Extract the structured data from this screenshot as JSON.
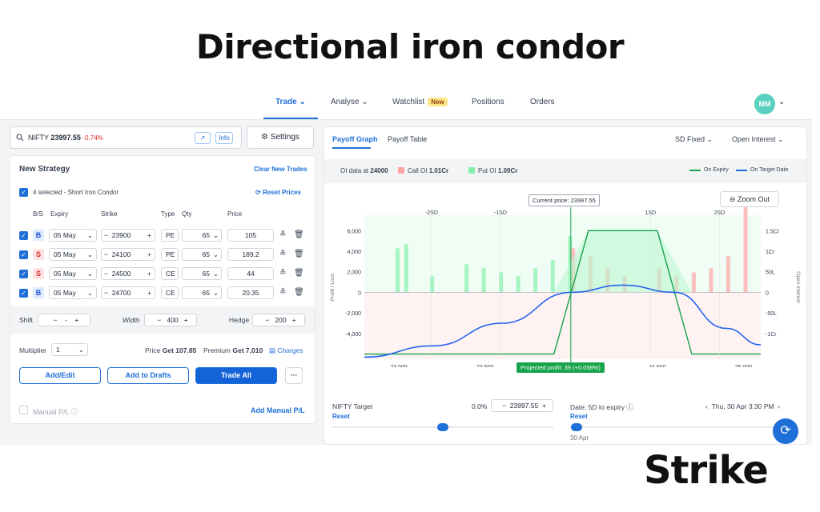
{
  "title": "Directional iron condor",
  "nav": {
    "items": [
      "Trade",
      "Analyse",
      "Watchlist",
      "Positions",
      "Orders"
    ],
    "new_badge": "New",
    "avatar": "MM"
  },
  "search": {
    "symbol": "NIFTY",
    "price": "23997.55",
    "change": "-0.74%",
    "info": "Info"
  },
  "settings_label": "Settings",
  "strategy": {
    "title": "New Strategy",
    "clear": "Clear New Trades",
    "selected": "4 selected - Short Iron Condor",
    "reset": "Reset Prices",
    "headers": [
      "B/S",
      "Expiry",
      "Strike",
      "Type",
      "Qty",
      "Price"
    ],
    "legs": [
      {
        "side": "B",
        "expiry": "05 May",
        "strike": "23900",
        "type": "PE",
        "qty": "65",
        "price": "105"
      },
      {
        "side": "S",
        "expiry": "05 May",
        "strike": "24100",
        "type": "PE",
        "qty": "65",
        "price": "189.2"
      },
      {
        "side": "S",
        "expiry": "05 May",
        "strike": "24500",
        "type": "CE",
        "qty": "65",
        "price": "44"
      },
      {
        "side": "B",
        "expiry": "05 May",
        "strike": "24700",
        "type": "CE",
        "qty": "65",
        "price": "20.35"
      }
    ]
  },
  "shift": {
    "label": "Shift",
    "value": "-",
    "width_label": "Width",
    "width": "400",
    "hedge_label": "Hedge",
    "hedge": "200"
  },
  "multiplier": {
    "label": "Multiplier",
    "value": "1",
    "price_label": "Price",
    "price": "Get 107.85",
    "premium_label": "Premium",
    "premium": "Get 7,010",
    "charges": "Charges"
  },
  "buttons": {
    "add_edit": "Add/Edit",
    "drafts": "Add to Drafts",
    "trade_all": "Trade All",
    "more": "···"
  },
  "manual": {
    "label": "Manual P/L",
    "add": "Add Manual P/L"
  },
  "chart_tabs": [
    "Payoff Graph",
    "Payoff Table"
  ],
  "dropdowns": [
    "SD Fixed",
    "Open Interest"
  ],
  "oi": {
    "label": "OI data at",
    "strike": "24000",
    "call_label": "Call OI",
    "call": "1.01Cr",
    "put_label": "Put OI",
    "put": "1.09Cr",
    "on_expiry": "On Expiry",
    "on_target": "On Target Date"
  },
  "zoom": "Zoom Out",
  "current_price": "Current price: 23997.55",
  "projected": "Projected profit: 39 (+0.058%)",
  "sd_labels": [
    "-2SD",
    "-1SD",
    "1SD",
    "2SD"
  ],
  "target": {
    "label": "NIFTY Target",
    "pct": "0.0%",
    "value": "23997.55",
    "reset": "Reset",
    "date_label": "Date: 5D to expiry",
    "date": "Thu, 30 Apr 3:30 PM",
    "date_reset": "Reset",
    "date_tick": "30 Apr"
  },
  "colors": {
    "accent": "#1f6fd8",
    "profit": "#16a34a",
    "loss": "#dc2626"
  },
  "chart_data": {
    "type": "line",
    "xlabel": "",
    "ylabel": "Profit / Loss",
    "y2label": "Open Interest",
    "x": [
      23000,
      23500,
      24000,
      24500,
      25000
    ],
    "ylim": [
      -4000,
      6000
    ],
    "yticks": [
      "6,000",
      "4,000",
      "2,000",
      "0",
      "-2,000",
      "-4,000"
    ],
    "y2ticks": [
      "1.5Cr",
      "1Cr",
      "50L",
      "0",
      "-50L",
      "-1Cr"
    ],
    "series": [
      {
        "name": "On Expiry",
        "points": [
          [
            22800,
            -6000
          ],
          [
            23900,
            -6000
          ],
          [
            24100,
            6000
          ],
          [
            24500,
            6000
          ],
          [
            24700,
            -6000
          ],
          [
            25100,
            -6000
          ]
        ]
      },
      {
        "name": "On Target Date",
        "points": [
          [
            22800,
            -6300
          ],
          [
            23200,
            -5200
          ],
          [
            23600,
            -3000
          ],
          [
            24000,
            0
          ],
          [
            24300,
            700
          ],
          [
            24600,
            0
          ],
          [
            24900,
            -3500
          ],
          [
            25100,
            -5100
          ]
        ]
      }
    ]
  },
  "logo": "Strike"
}
